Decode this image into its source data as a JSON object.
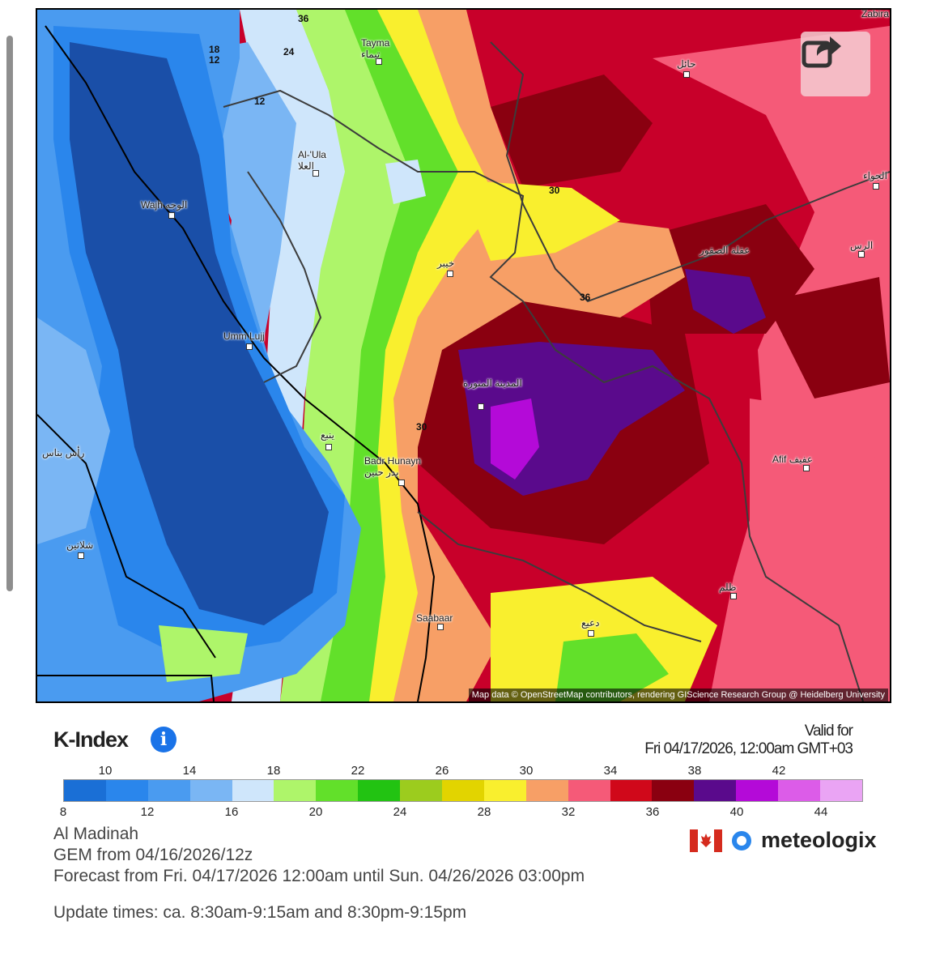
{
  "map": {
    "attribution": "Map data © OpenStreetMap contributors, rendering GIScience Research Group @ Heidelberg University",
    "places": [
      {
        "name": "Tayma",
        "ar": "تيماء"
      },
      {
        "name": "حائل",
        "ar": ""
      },
      {
        "name": "Zabira",
        "ar": ""
      },
      {
        "name": "Al-'Ula",
        "ar": "العلا"
      },
      {
        "name": "Wajh",
        "ar": "الوجه"
      },
      {
        "name": "الجواء",
        "ar": ""
      },
      {
        "name": "خيبر",
        "ar": ""
      },
      {
        "name": "عقلة الصقور",
        "ar": ""
      },
      {
        "name": "الرس",
        "ar": ""
      },
      {
        "name": "Umm Lujj",
        "ar": ""
      },
      {
        "name": "المدينة المنورة",
        "ar": ""
      },
      {
        "name": "ينبع",
        "ar": ""
      },
      {
        "name": "Badr Hunayn",
        "ar": "بدر حنين"
      },
      {
        "name": "Afif",
        "ar": "عفيف"
      },
      {
        "name": "رأس بناس",
        "ar": ""
      },
      {
        "name": "شلاتين",
        "ar": ""
      },
      {
        "name": "ظلم",
        "ar": ""
      },
      {
        "name": "دعيع",
        "ar": ""
      },
      {
        "name": "Saabaar",
        "ar": ""
      }
    ],
    "contour_labels": [
      "36",
      "24",
      "18",
      "12",
      "12",
      "30",
      "36",
      "30"
    ]
  },
  "share_icon": "share-icon",
  "legend": {
    "title": "K-Index",
    "info_icon": "info-icon",
    "valid_line1": "Valid for",
    "valid_line2": "Fri 04/17/2026, 12:00am GMT+03",
    "colors": [
      "#1a6fd6",
      "#2a86ec",
      "#4a9bf0",
      "#7ab6f4",
      "#cfe6fb",
      "#aef56a",
      "#62e02a",
      "#22c312",
      "#9ccc1e",
      "#e2d400",
      "#f9ef2e",
      "#f79f66",
      "#f55a78",
      "#d0081a",
      "#8a0010",
      "#5a0a8c",
      "#b40ad8",
      "#dc5ce8",
      "#eaa4f4"
    ],
    "top_ticks": [
      "10",
      "14",
      "18",
      "22",
      "26",
      "30",
      "34",
      "38",
      "42"
    ],
    "bottom_ticks": [
      "8",
      "12",
      "16",
      "20",
      "24",
      "28",
      "32",
      "36",
      "40",
      "44"
    ]
  },
  "info": {
    "location": "Al Madinah",
    "model": "GEM from 04/16/2026/12z",
    "forecast": "Forecast from Fri. 04/17/2026 12:00am until Sun. 04/26/2026 03:00pm",
    "update": "Update times: ca. 8:30am-9:15am and 8:30pm-9:15pm"
  },
  "brand": {
    "name": "meteologix",
    "flag_icon": "canada-flag-icon",
    "logo_icon": "meteologix-logo-icon"
  }
}
